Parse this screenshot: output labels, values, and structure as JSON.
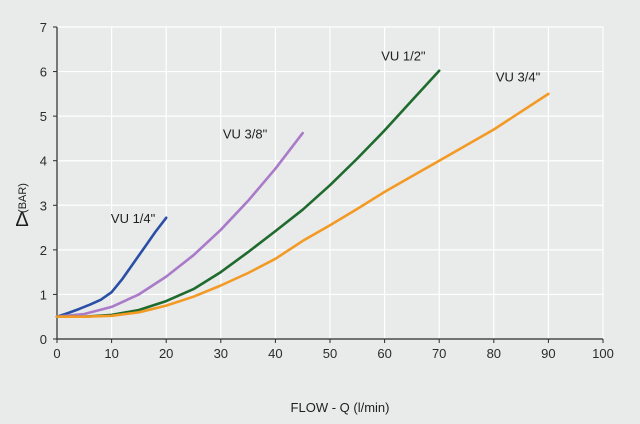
{
  "chart_data": {
    "type": "line",
    "title": "",
    "xlabel": "FLOW - Q (l/min)",
    "ylabel_symbol": "Δ",
    "ylabel_unit": "(BAR)",
    "xlim": [
      0,
      100
    ],
    "ylim": [
      0,
      7
    ],
    "x_ticks": [
      "0",
      "10",
      "20",
      "30",
      "40",
      "50",
      "60",
      "70",
      "80",
      "90",
      "100"
    ],
    "y_ticks": [
      "0",
      "1",
      "2",
      "3",
      "4",
      "5",
      "6",
      "7"
    ],
    "grid": true,
    "colors": {
      "background": "#e9eaea",
      "grid": "#ffffff",
      "axis": "#2b2b2b"
    },
    "series": [
      {
        "name": "VU 1/4\"",
        "color": "#2a4fa6",
        "points": [
          [
            0,
            0.5
          ],
          [
            2,
            0.58
          ],
          [
            4,
            0.67
          ],
          [
            6,
            0.77
          ],
          [
            8,
            0.88
          ],
          [
            10,
            1.05
          ],
          [
            12,
            1.35
          ],
          [
            14,
            1.7
          ],
          [
            16,
            2.05
          ],
          [
            18,
            2.4
          ],
          [
            20,
            2.72
          ]
        ],
        "label_at": [
          18,
          2.6
        ]
      },
      {
        "name": "VU 3/8\"",
        "color": "#a97bc9",
        "points": [
          [
            0,
            0.5
          ],
          [
            5,
            0.56
          ],
          [
            10,
            0.72
          ],
          [
            15,
            1.0
          ],
          [
            20,
            1.4
          ],
          [
            25,
            1.88
          ],
          [
            30,
            2.45
          ],
          [
            35,
            3.1
          ],
          [
            40,
            3.82
          ],
          [
            45,
            4.62
          ]
        ],
        "label_at": [
          38.5,
          4.5
        ]
      },
      {
        "name": "VU 1/2\"",
        "color": "#1f6b2e",
        "points": [
          [
            0,
            0.5
          ],
          [
            5,
            0.5
          ],
          [
            10,
            0.54
          ],
          [
            15,
            0.65
          ],
          [
            20,
            0.85
          ],
          [
            25,
            1.12
          ],
          [
            30,
            1.5
          ],
          [
            35,
            1.95
          ],
          [
            40,
            2.42
          ],
          [
            45,
            2.9
          ],
          [
            50,
            3.45
          ],
          [
            55,
            4.05
          ],
          [
            60,
            4.68
          ],
          [
            65,
            5.35
          ],
          [
            70,
            6.02
          ]
        ],
        "label_at": [
          67.5,
          6.25
        ]
      },
      {
        "name": "VU 3/4\"",
        "color": "#f39a25",
        "points": [
          [
            0,
            0.5
          ],
          [
            5,
            0.5
          ],
          [
            10,
            0.52
          ],
          [
            15,
            0.6
          ],
          [
            20,
            0.75
          ],
          [
            25,
            0.95
          ],
          [
            30,
            1.2
          ],
          [
            35,
            1.48
          ],
          [
            40,
            1.8
          ],
          [
            45,
            2.2
          ],
          [
            50,
            2.55
          ],
          [
            55,
            2.92
          ],
          [
            60,
            3.3
          ],
          [
            65,
            3.65
          ],
          [
            70,
            4.0
          ],
          [
            75,
            4.35
          ],
          [
            80,
            4.7
          ],
          [
            85,
            5.1
          ],
          [
            90,
            5.5
          ]
        ],
        "label_at": [
          88.5,
          5.78
        ]
      }
    ]
  }
}
